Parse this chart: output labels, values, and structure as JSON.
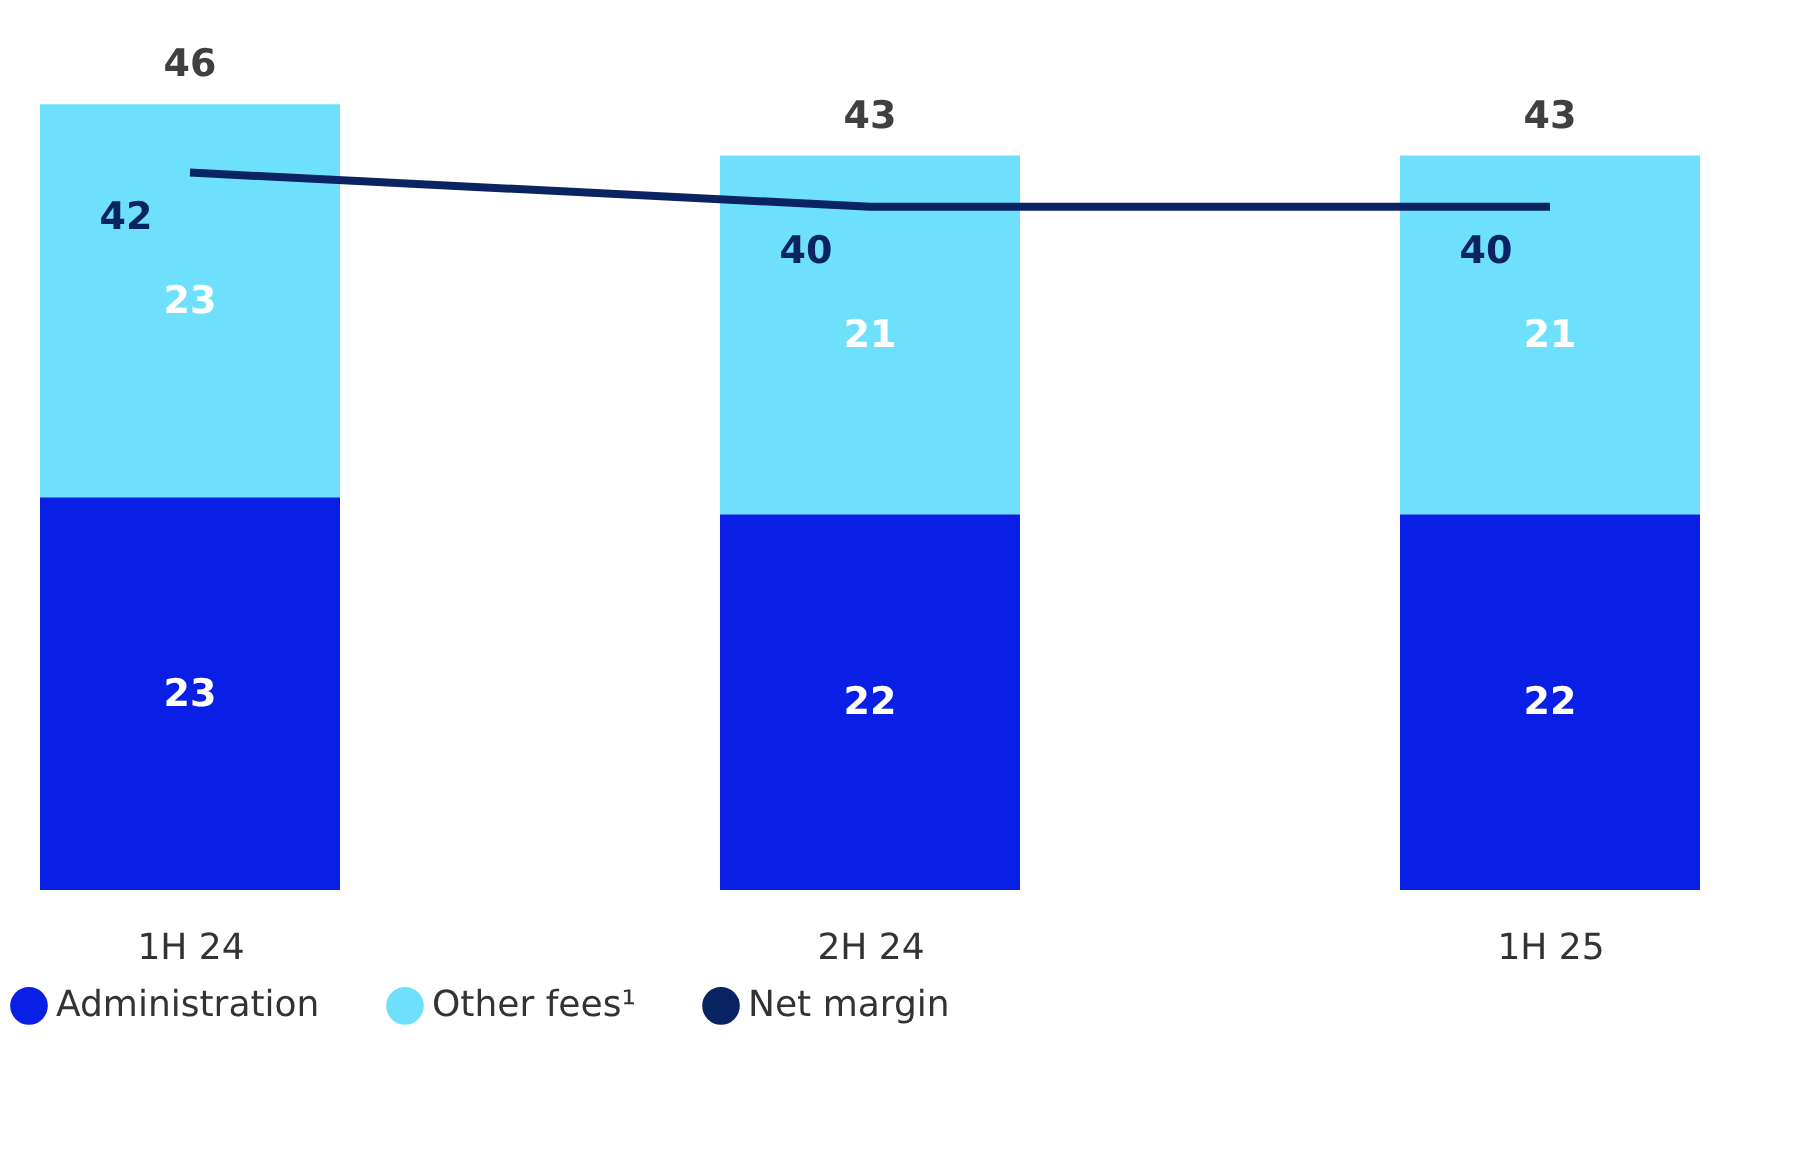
{
  "chart_data": {
    "type": "bar",
    "stacked": true,
    "categories": [
      "1H 24",
      "2H 24",
      "1H 25"
    ],
    "series": [
      {
        "name": "Administration",
        "color": "#0a1fe6",
        "values": [
          23,
          22,
          22
        ]
      },
      {
        "name": "Other fees¹",
        "color": "#6ee0fc",
        "values": [
          23,
          21,
          21
        ]
      },
      {
        "name": "Net margin",
        "type": "line",
        "color": "#0a2463",
        "values": [
          42,
          40,
          40
        ]
      }
    ],
    "totals": [
      "46",
      "43",
      "43"
    ],
    "data_labels": true,
    "legend": "bottom",
    "grid": false
  }
}
